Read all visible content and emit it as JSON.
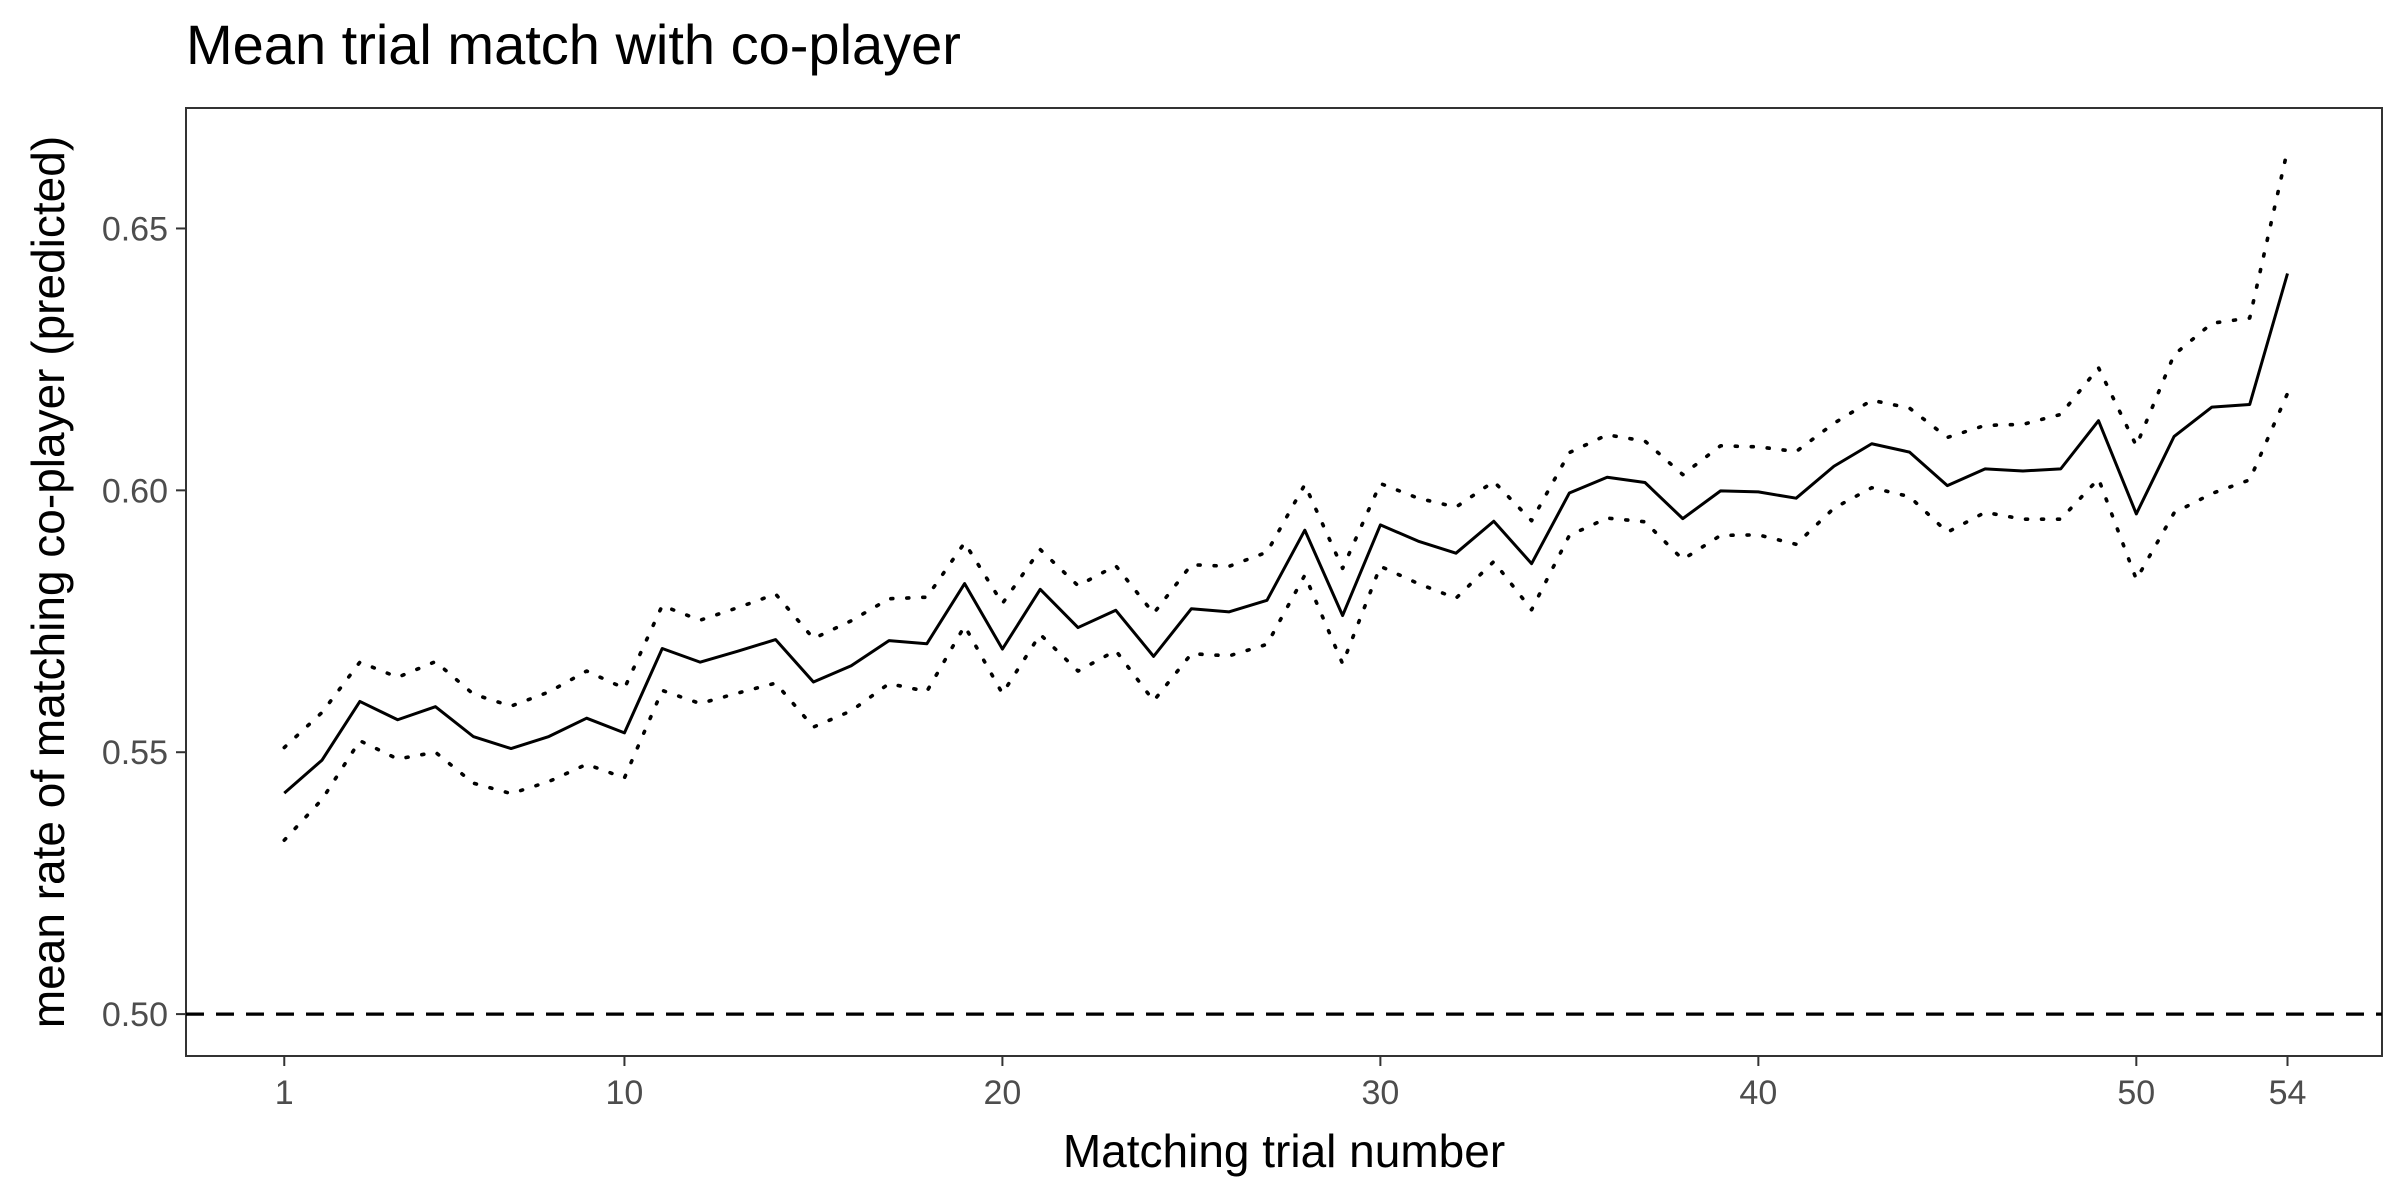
{
  "chart_data": {
    "type": "line",
    "title": "Mean trial match with co-player",
    "xlabel": "Matching trial number",
    "ylabel": "mean rate of matching co-player (predicted)",
    "xlim": [
      -1.6,
      56.5
    ],
    "ylim": [
      0.492,
      0.673
    ],
    "x_ticks": [
      1,
      10,
      20,
      30,
      40,
      50,
      54
    ],
    "y_ticks": [
      0.5,
      0.55,
      0.6,
      0.65
    ],
    "y_tick_labels": [
      "0.50",
      "0.55",
      "0.60",
      "0.65"
    ],
    "grid": false,
    "legend": "none",
    "reference_line": {
      "y": 0.5,
      "style": "dashed"
    },
    "x": [
      1,
      2,
      3,
      4,
      5,
      6,
      7,
      8,
      9,
      10,
      11,
      12,
      13,
      14,
      15,
      16,
      17,
      18,
      19,
      20,
      21,
      22,
      23,
      24,
      25,
      26,
      27,
      28,
      29,
      30,
      31,
      32,
      33,
      34,
      35,
      36,
      37,
      38,
      39,
      40,
      41,
      42,
      43,
      44,
      45,
      46,
      47,
      48,
      49,
      50,
      51,
      52,
      53,
      54
    ],
    "series": [
      {
        "role": "estimate",
        "style": "solid",
        "values": [
          0.5422,
          0.5485,
          0.5597,
          0.5562,
          0.5587,
          0.553,
          0.5507,
          0.553,
          0.5565,
          0.5537,
          0.5698,
          0.5672,
          0.5693,
          0.5715,
          0.5634,
          0.5665,
          0.5713,
          0.5707,
          0.5822,
          0.5697,
          0.5811,
          0.5738,
          0.5771,
          0.5683,
          0.5774,
          0.5768,
          0.579,
          0.5924,
          0.5761,
          0.5934,
          0.5903,
          0.588,
          0.5941,
          0.586,
          0.5995,
          0.6025,
          0.6015,
          0.5946,
          0.5999,
          0.5997,
          0.5985,
          0.6046,
          0.6089,
          0.6073,
          0.6009,
          0.6041,
          0.6037,
          0.6041,
          0.6133,
          0.5955,
          0.6103,
          0.6159,
          0.6164,
          0.6414
        ]
      },
      {
        "role": "upper",
        "style": "dotted",
        "values": [
          0.5509,
          0.5576,
          0.5672,
          0.5643,
          0.5673,
          0.5611,
          0.5588,
          0.5615,
          0.5655,
          0.5622,
          0.578,
          0.5752,
          0.5776,
          0.5802,
          0.5717,
          0.5751,
          0.5793,
          0.5796,
          0.59,
          0.5784,
          0.5887,
          0.5818,
          0.5856,
          0.5765,
          0.5858,
          0.5855,
          0.5882,
          0.6011,
          0.5851,
          0.6013,
          0.5985,
          0.5968,
          0.6017,
          0.5942,
          0.6072,
          0.6106,
          0.6094,
          0.603,
          0.6085,
          0.6083,
          0.6074,
          0.6128,
          0.6172,
          0.6157,
          0.6101,
          0.6124,
          0.6126,
          0.6145,
          0.6234,
          0.6085,
          0.6259,
          0.6319,
          0.6329,
          0.665
        ]
      },
      {
        "role": "lower",
        "style": "dotted",
        "values": [
          0.5332,
          0.541,
          0.5522,
          0.5487,
          0.55,
          0.5441,
          0.5421,
          0.5444,
          0.5477,
          0.5451,
          0.5618,
          0.5593,
          0.5613,
          0.5632,
          0.5548,
          0.5579,
          0.5631,
          0.5616,
          0.5741,
          0.5612,
          0.5725,
          0.5655,
          0.5694,
          0.5598,
          0.5688,
          0.5684,
          0.5706,
          0.5838,
          0.5669,
          0.5855,
          0.5822,
          0.5794,
          0.5864,
          0.5772,
          0.5914,
          0.5947,
          0.594,
          0.5868,
          0.5914,
          0.5915,
          0.5897,
          0.5966,
          0.6005,
          0.5988,
          0.592,
          0.5958,
          0.5945,
          0.5945,
          0.6022,
          0.583,
          0.5957,
          0.5994,
          0.602,
          0.6185
        ]
      }
    ]
  }
}
